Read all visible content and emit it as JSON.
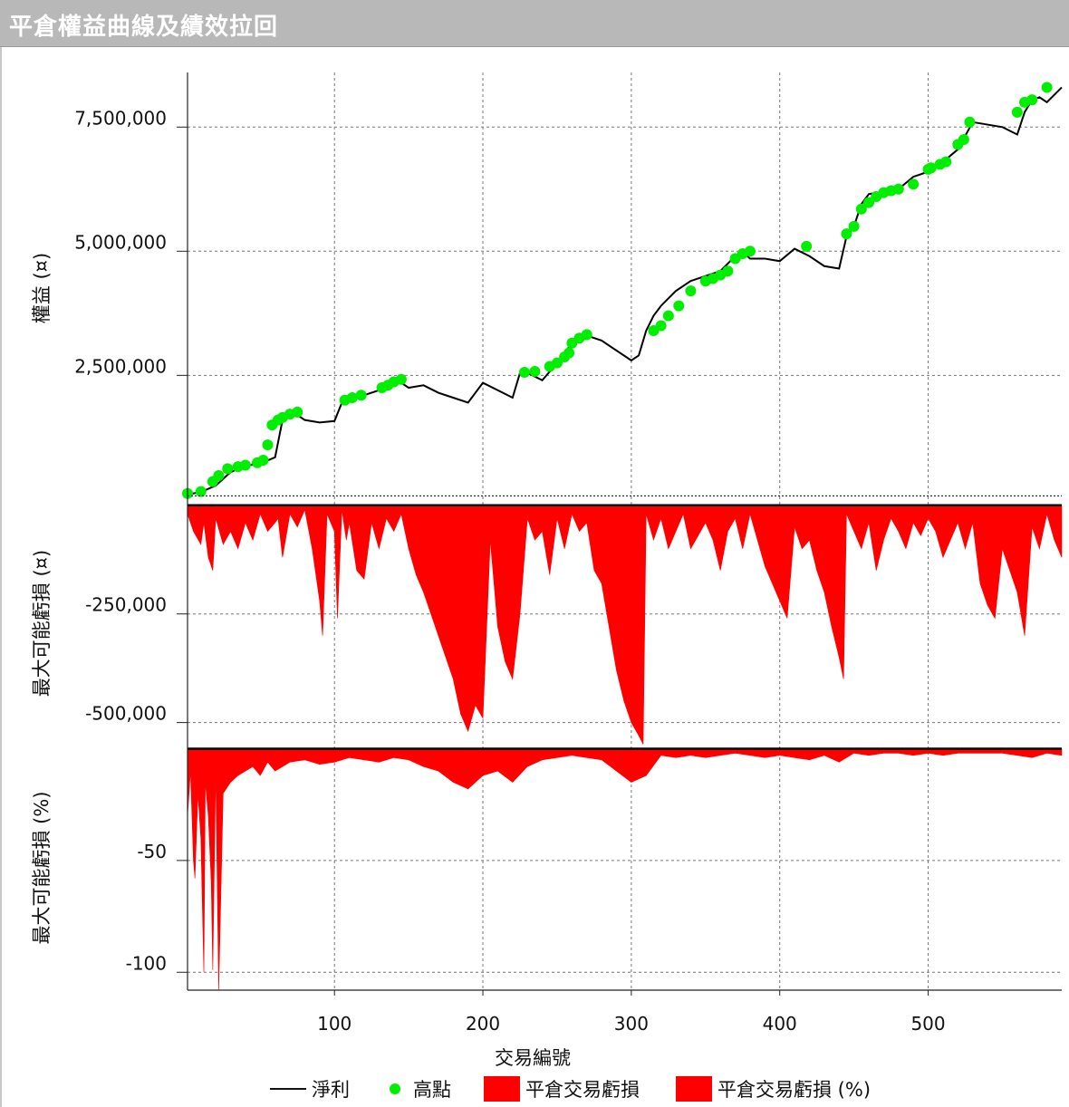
{
  "title": "平倉權益曲線及績效拉回",
  "colors": {
    "equity_line": "#000000",
    "high_points": "#00ee00",
    "drawdown_fill": "#ff0000",
    "grid": "#777777"
  },
  "chart_data": [
    {
      "type": "line",
      "panel": "equity",
      "ylabel": "權益 (¤)",
      "ylim": [
        -30000,
        8600000
      ],
      "yticks": [
        2500000,
        5000000,
        7500000
      ],
      "ytick_labels": [
        "2,500,000",
        "5,000,000",
        "7,500,000"
      ],
      "x": [
        1,
        10,
        20,
        30,
        40,
        50,
        60,
        65,
        70,
        75,
        80,
        90,
        100,
        105,
        110,
        120,
        130,
        140,
        145,
        150,
        160,
        170,
        180,
        190,
        200,
        210,
        220,
        225,
        230,
        240,
        250,
        260,
        265,
        270,
        280,
        290,
        300,
        305,
        310,
        315,
        320,
        330,
        340,
        350,
        360,
        370,
        375,
        380,
        390,
        400,
        410,
        420,
        430,
        440,
        445,
        450,
        455,
        460,
        470,
        480,
        490,
        500,
        510,
        520,
        530,
        540,
        550,
        560,
        565,
        570,
        575,
        580,
        590
      ],
      "y": [
        100000,
        150000,
        280000,
        550000,
        680000,
        720000,
        850000,
        1600000,
        1750000,
        1700000,
        1600000,
        1550000,
        1580000,
        1950000,
        2050000,
        2100000,
        2200000,
        2400000,
        2350000,
        2250000,
        2300000,
        2150000,
        2050000,
        1950000,
        2350000,
        2200000,
        2050000,
        2550000,
        2550000,
        2400000,
        2750000,
        3150000,
        3300000,
        3300000,
        3200000,
        3000000,
        2800000,
        2900000,
        3400000,
        3700000,
        3900000,
        4200000,
        4400000,
        4500000,
        4600000,
        4900000,
        5000000,
        4850000,
        4850000,
        4800000,
        5050000,
        4900000,
        4700000,
        4650000,
        5300000,
        5500000,
        5950000,
        6150000,
        6200000,
        6250000,
        6500000,
        6600000,
        6800000,
        7050000,
        7600000,
        7550000,
        7500000,
        7350000,
        7800000,
        8050000,
        8100000,
        8000000,
        8300000
      ],
      "high_points": {
        "x": [
          1,
          10,
          18,
          22,
          28,
          35,
          40,
          48,
          52,
          55,
          58,
          62,
          65,
          70,
          75,
          107,
          112,
          118,
          132,
          136,
          140,
          145,
          228,
          235,
          245,
          250,
          255,
          258,
          260,
          265,
          270,
          315,
          320,
          325,
          332,
          340,
          350,
          355,
          360,
          365,
          370,
          375,
          380,
          418,
          445,
          450,
          455,
          460,
          465,
          470,
          475,
          480,
          490,
          500,
          502,
          508,
          512,
          520,
          524,
          528,
          560,
          565,
          570,
          580
        ],
        "y": [
          120000,
          160000,
          360000,
          480000,
          620000,
          660000,
          690000,
          740000,
          790000,
          1100000,
          1500000,
          1600000,
          1650000,
          1720000,
          1760000,
          2000000,
          2050000,
          2100000,
          2250000,
          2300000,
          2370000,
          2420000,
          2560000,
          2580000,
          2680000,
          2750000,
          2870000,
          2950000,
          3150000,
          3250000,
          3320000,
          3400000,
          3500000,
          3700000,
          3900000,
          4200000,
          4400000,
          4450000,
          4520000,
          4600000,
          4850000,
          4950000,
          5000000,
          5100000,
          5350000,
          5500000,
          5850000,
          5980000,
          6100000,
          6180000,
          6220000,
          6250000,
          6350000,
          6650000,
          6680000,
          6750000,
          6800000,
          7150000,
          7250000,
          7600000,
          7800000,
          8000000,
          8050000,
          8300000
        ]
      },
      "series": [
        {
          "name": "淨利"
        },
        {
          "name": "高點"
        }
      ]
    },
    {
      "type": "area",
      "panel": "drawdown_value",
      "ylabel": "最大可能虧損 (¤)",
      "ylim": [
        -555000,
        10000
      ],
      "yticks": [
        -250000,
        -500000
      ],
      "ytick_labels": [
        "-250,000",
        "-500,000"
      ],
      "x": [
        1,
        5,
        10,
        12,
        15,
        18,
        20,
        25,
        30,
        35,
        40,
        45,
        50,
        55,
        60,
        62,
        65,
        70,
        75,
        80,
        85,
        90,
        92,
        95,
        100,
        102,
        105,
        108,
        110,
        115,
        120,
        125,
        130,
        135,
        140,
        145,
        150,
        155,
        160,
        165,
        170,
        175,
        180,
        185,
        190,
        195,
        200,
        205,
        210,
        215,
        220,
        225,
        230,
        235,
        240,
        245,
        250,
        255,
        260,
        265,
        270,
        275,
        280,
        285,
        290,
        295,
        300,
        305,
        308,
        310,
        315,
        320,
        325,
        330,
        335,
        340,
        345,
        350,
        355,
        360,
        365,
        370,
        375,
        380,
        385,
        390,
        395,
        400,
        405,
        410,
        415,
        420,
        425,
        430,
        435,
        440,
        443,
        445,
        450,
        455,
        460,
        465,
        470,
        475,
        480,
        485,
        490,
        495,
        500,
        505,
        510,
        515,
        520,
        525,
        530,
        535,
        540,
        545,
        550,
        555,
        560,
        565,
        570,
        575,
        580,
        585,
        590
      ],
      "y": [
        -20000,
        -60000,
        -90000,
        -40000,
        -120000,
        -150000,
        -30000,
        -90000,
        -60000,
        -100000,
        -40000,
        -80000,
        -20000,
        -60000,
        -40000,
        -30000,
        -120000,
        -20000,
        -50000,
        -10000,
        -100000,
        -220000,
        -300000,
        -20000,
        -60000,
        -260000,
        -10000,
        -80000,
        -40000,
        -150000,
        -170000,
        -40000,
        -100000,
        -30000,
        -60000,
        -20000,
        -100000,
        -160000,
        -200000,
        -250000,
        -300000,
        -350000,
        -400000,
        -480000,
        -520000,
        -460000,
        -490000,
        -80000,
        -280000,
        -360000,
        -400000,
        -250000,
        -30000,
        -80000,
        -60000,
        -160000,
        -30000,
        -100000,
        -20000,
        -60000,
        -40000,
        -150000,
        -180000,
        -280000,
        -380000,
        -450000,
        -500000,
        -530000,
        -550000,
        -20000,
        -80000,
        -30000,
        -100000,
        -60000,
        -20000,
        -100000,
        -70000,
        -40000,
        -80000,
        -150000,
        -60000,
        -30000,
        -100000,
        -20000,
        -80000,
        -140000,
        -180000,
        -220000,
        -260000,
        -50000,
        -100000,
        -80000,
        -150000,
        -200000,
        -280000,
        -350000,
        -400000,
        -20000,
        -60000,
        -100000,
        -40000,
        -150000,
        -80000,
        -30000,
        -60000,
        -100000,
        -40000,
        -70000,
        -30000,
        -60000,
        -120000,
        -80000,
        -40000,
        -100000,
        -40000,
        -180000,
        -230000,
        -260000,
        -100000,
        -150000,
        -200000,
        -300000,
        -50000,
        -100000,
        -20000,
        -80000,
        -120000
      ]
    },
    {
      "type": "area",
      "panel": "drawdown_percent",
      "ylabel": "最大可能虧損 (%)",
      "ylim": [
        -108,
        1
      ],
      "yticks": [
        -50,
        -100
      ],
      "ytick_labels": [
        "-50",
        "-100"
      ],
      "x": [
        1,
        3,
        5,
        6,
        8,
        10,
        12,
        13,
        15,
        17,
        18,
        20,
        22,
        25,
        30,
        35,
        40,
        45,
        50,
        55,
        60,
        65,
        70,
        80,
        90,
        100,
        110,
        120,
        130,
        140,
        150,
        160,
        170,
        180,
        190,
        200,
        210,
        220,
        230,
        240,
        250,
        260,
        270,
        280,
        290,
        300,
        310,
        320,
        330,
        340,
        350,
        360,
        370,
        380,
        390,
        400,
        410,
        420,
        430,
        440,
        450,
        460,
        470,
        480,
        490,
        500,
        510,
        520,
        530,
        540,
        550,
        560,
        570,
        580,
        590
      ],
      "y": [
        -30,
        -10,
        -50,
        -58,
        -20,
        -40,
        -100,
        -15,
        -30,
        -60,
        -99,
        -10,
        -108,
        -20,
        -15,
        -12,
        -10,
        -8,
        -12,
        -6,
        -10,
        -8,
        -6,
        -5,
        -7,
        -6,
        -4,
        -5,
        -6,
        -4,
        -5,
        -8,
        -10,
        -15,
        -18,
        -12,
        -10,
        -15,
        -8,
        -5,
        -4,
        -3,
        -4,
        -5,
        -10,
        -15,
        -12,
        -3,
        -4,
        -3,
        -4,
        -3,
        -2,
        -3,
        -4,
        -3,
        -4,
        -5,
        -3,
        -6,
        -2,
        -3,
        -2,
        -2,
        -3,
        -2,
        -3,
        -2,
        -2,
        -2,
        -2,
        -3,
        -4,
        -2,
        -3
      ]
    },
    {
      "panel": "x-axis",
      "xlabel": "交易編號",
      "xlim": [
        1,
        590
      ],
      "xticks": [
        100,
        200,
        300,
        400,
        500
      ],
      "xtick_labels": [
        "100",
        "200",
        "300",
        "400",
        "500"
      ]
    }
  ],
  "legend": {
    "placement": "bottom-center",
    "items": [
      "淨利",
      "高點",
      "平倉交易虧損",
      "平倉交易虧損 (%)"
    ]
  }
}
